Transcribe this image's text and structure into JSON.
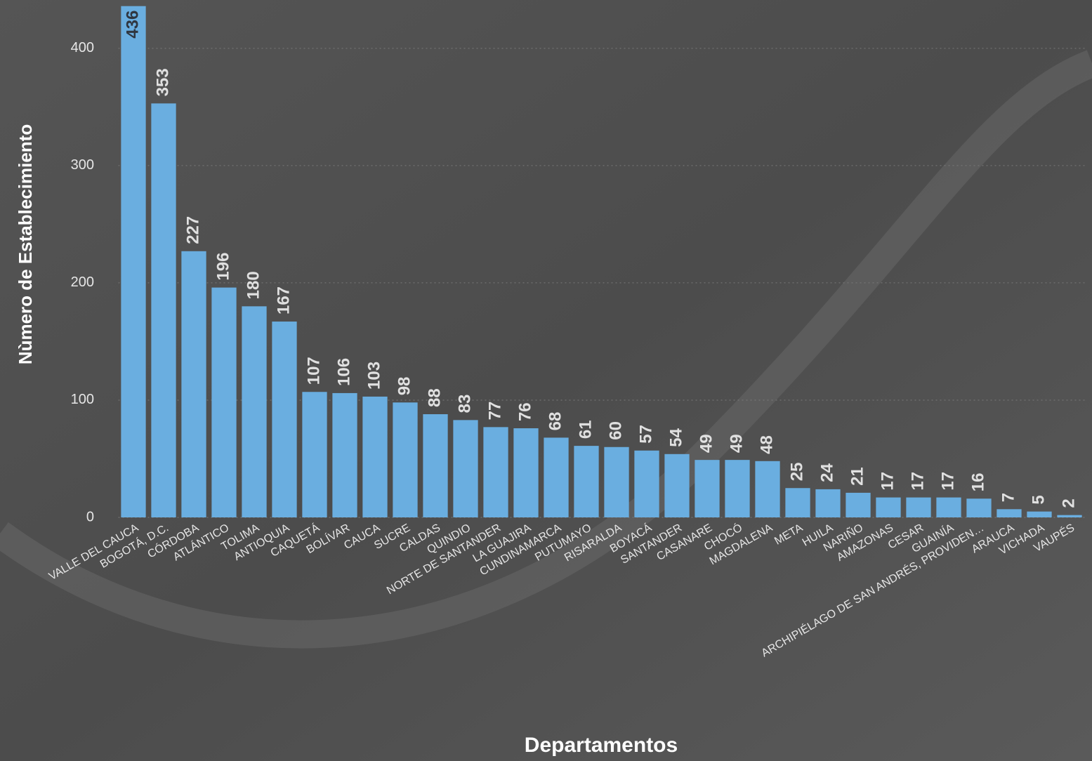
{
  "chart_data": {
    "type": "bar",
    "x_label": "Departamentos",
    "y_label": "Nùmero de Establecimiento",
    "categories": [
      "VALLE DEL CAUCA",
      "BOGOTÁ, D.C.",
      "CÓRDOBA",
      "ATLÁNTICO",
      "TOLIMA",
      "ANTIOQUIA",
      "CAQUETÁ",
      "BOLÍVAR",
      "CAUCA",
      "SUCRE",
      "CALDAS",
      "QUINDIO",
      "NORTE DE SANTANDER",
      "LA GUAJIRA",
      "CUNDINAMARCA",
      "PUTUMAYO",
      "RISARALDA",
      "BOYACÁ",
      "SANTANDER",
      "CASANARE",
      "CHOCÓ",
      "MAGDALENA",
      "META",
      "HUILA",
      "NARIÑO",
      "AMAZONAS",
      "CESAR",
      "GUAINÍA",
      "ARCHIPIÉLAGO DE SAN ANDRÉS, PROVIDEN…",
      "ARAUCA",
      "VICHADA",
      "VAUPÉS"
    ],
    "values": [
      436,
      353,
      227,
      196,
      180,
      167,
      107,
      106,
      103,
      98,
      88,
      83,
      77,
      76,
      68,
      61,
      60,
      57,
      54,
      49,
      49,
      48,
      25,
      24,
      21,
      17,
      17,
      17,
      16,
      7,
      5,
      2
    ],
    "color": "#6aaee0",
    "ylim": [
      0,
      440
    ],
    "yticks": [
      0,
      100,
      200,
      300,
      400
    ],
    "grid": true
  }
}
